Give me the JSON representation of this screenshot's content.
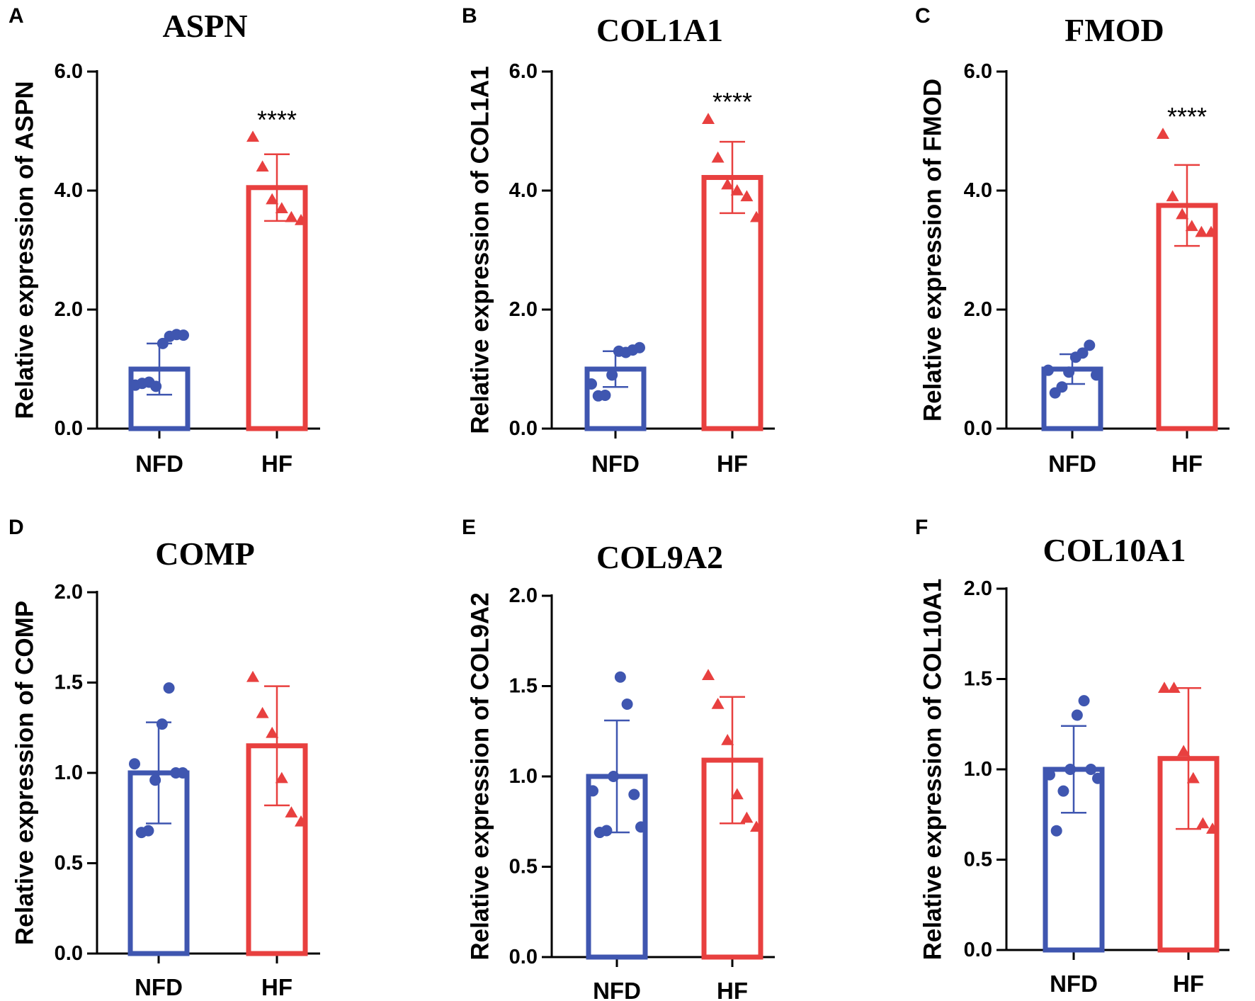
{
  "colors": {
    "nfd": "#3f56b0",
    "hf": "#e8403f",
    "axis": "#000000"
  },
  "chart_data": [
    {
      "letter": "A",
      "type": "bar",
      "title": "ASPN",
      "ylabel": "Relative expression of ASPN",
      "ylim": [
        0,
        6
      ],
      "yticks": [
        "0.0",
        "2.0",
        "4.0",
        "6.0"
      ],
      "categories": [
        "NFD",
        "HF"
      ],
      "values": [
        1.0,
        4.05
      ],
      "errors": [
        0.43,
        0.56
      ],
      "points": [
        [
          0.73,
          0.76,
          0.78,
          0.71,
          1.43,
          1.55,
          1.58,
          1.57
        ],
        [
          4.9,
          4.4,
          3.85,
          3.7,
          3.55,
          3.5
        ]
      ],
      "significance": "****"
    },
    {
      "letter": "B",
      "type": "bar",
      "title": "COL1A1",
      "ylabel": "Relative expression of COL1A1",
      "ylim": [
        0,
        6
      ],
      "yticks": [
        "0.0",
        "2.0",
        "4.0",
        "6.0"
      ],
      "categories": [
        "NFD",
        "HF"
      ],
      "values": [
        1.0,
        4.22
      ],
      "errors": [
        0.3,
        0.6
      ],
      "points": [
        [
          0.75,
          0.55,
          0.56,
          0.9,
          1.3,
          1.28,
          1.32,
          1.36
        ],
        [
          5.2,
          4.55,
          4.1,
          4.0,
          3.9,
          3.55
        ]
      ],
      "significance": "****"
    },
    {
      "letter": "C",
      "type": "bar",
      "title": "FMOD",
      "ylabel": "Relative expression of FMOD",
      "ylim": [
        0,
        6
      ],
      "yticks": [
        "0.0",
        "2.0",
        "4.0",
        "6.0"
      ],
      "categories": [
        "NFD",
        "HF"
      ],
      "values": [
        1.0,
        3.75
      ],
      "errors": [
        0.25,
        0.68
      ],
      "points": [
        [
          0.98,
          0.6,
          0.7,
          0.95,
          1.2,
          1.27,
          1.4,
          0.9
        ],
        [
          4.95,
          3.9,
          3.6,
          3.4,
          3.3,
          3.3
        ]
      ],
      "significance": "****"
    },
    {
      "letter": "D",
      "type": "bar",
      "title": "COMP",
      "ylabel": "Relative expression of COMP",
      "ylim": [
        0,
        2
      ],
      "yticks": [
        "0.0",
        "0.5",
        "1.0",
        "1.5",
        "2.0"
      ],
      "categories": [
        "NFD",
        "HF"
      ],
      "values": [
        1.0,
        1.15
      ],
      "errors": [
        0.28,
        0.33
      ],
      "points": [
        [
          1.05,
          0.67,
          0.68,
          0.96,
          1.27,
          1.47,
          1.0,
          1.0
        ],
        [
          1.53,
          1.33,
          1.22,
          0.97,
          0.78,
          0.73
        ]
      ],
      "significance": ""
    },
    {
      "letter": "E",
      "type": "bar",
      "title": "COL9A2",
      "ylabel": "Relative expression of COL9A2",
      "ylim": [
        0,
        2
      ],
      "yticks": [
        "0.0",
        "0.5",
        "1.0",
        "1.5",
        "2.0"
      ],
      "categories": [
        "NFD",
        "HF"
      ],
      "values": [
        1.0,
        1.09
      ],
      "errors": [
        0.31,
        0.35
      ],
      "points": [
        [
          0.92,
          0.69,
          0.7,
          1.0,
          1.55,
          1.4,
          0.9,
          0.72
        ],
        [
          1.56,
          1.4,
          1.2,
          0.9,
          0.77,
          0.72
        ]
      ],
      "significance": ""
    },
    {
      "letter": "F",
      "type": "bar",
      "title": "COL10A1",
      "ylabel": "Relative expression of COL10A1",
      "ylim": [
        0,
        2
      ],
      "yticks": [
        "0.0",
        "0.5",
        "1.0",
        "1.5",
        "2.0"
      ],
      "categories": [
        "NFD",
        "HF"
      ],
      "values": [
        1.0,
        1.06
      ],
      "errors": [
        0.24,
        0.39
      ],
      "points": [
        [
          0.97,
          0.66,
          0.88,
          1.0,
          1.3,
          1.38,
          1.0,
          0.95
        ],
        [
          1.45,
          1.45,
          1.1,
          0.95,
          0.7,
          0.67
        ]
      ],
      "significance": ""
    }
  ]
}
